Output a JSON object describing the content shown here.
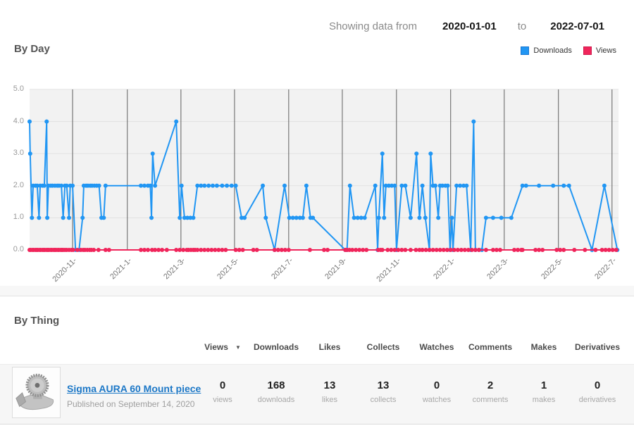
{
  "header": {
    "showing_label": "Showing data from",
    "date_from": "2020-01-01",
    "to_label": "to",
    "date_to": "2022-07-01"
  },
  "legend": [
    {
      "label": "Downloads",
      "color": "#2196f3",
      "border": "#1976d2"
    },
    {
      "label": "Views",
      "color": "#f0255b",
      "border": "#cf1c4d"
    }
  ],
  "sections": {
    "by_day": "By Day",
    "by_thing": "By Thing"
  },
  "chart_data": {
    "type": "line",
    "title": "By Day",
    "ylim": [
      0,
      5
    ],
    "y_ticks": [
      "5.0",
      "4.0",
      "3.0",
      "2.0",
      "1.0",
      "0.0"
    ],
    "x_tick_labels": [
      "2020-11-",
      "2021-1-",
      "2021-3-",
      "2021-5-",
      "2021-7-",
      "2021-9-",
      "2021-11-",
      "2022-1-",
      "2022-3-",
      "2022-5-",
      "2022-7-"
    ],
    "x_tick_pos": [
      0.073,
      0.166,
      0.257,
      0.348,
      0.44,
      0.531,
      0.623,
      0.715,
      0.806,
      0.898,
      0.989
    ],
    "grid": true,
    "plot_bg": "#f2f2f2",
    "grid_color_h": "#e1e1e1",
    "grid_color_v": "#5f5f5f",
    "legend_position": "top-right",
    "series": [
      {
        "name": "Downloads",
        "color": "#2196f3",
        "points": [
          [
            0,
            4
          ],
          [
            0.001,
            3
          ],
          [
            0.004,
            1
          ],
          [
            0.006,
            2
          ],
          [
            0.01,
            2
          ],
          [
            0.013,
            2
          ],
          [
            0.016,
            1
          ],
          [
            0.018,
            2
          ],
          [
            0.022,
            2
          ],
          [
            0.025,
            2
          ],
          [
            0.029,
            4
          ],
          [
            0.03,
            1
          ],
          [
            0.032,
            2
          ],
          [
            0.036,
            2
          ],
          [
            0.039,
            2
          ],
          [
            0.043,
            2
          ],
          [
            0.047,
            2
          ],
          [
            0.05,
            2
          ],
          [
            0.054,
            2
          ],
          [
            0.057,
            1
          ],
          [
            0.06,
            2
          ],
          [
            0.063,
            2
          ],
          [
            0.067,
            1
          ],
          [
            0.069,
            2
          ],
          [
            0.073,
            2
          ],
          [
            0.078,
            0
          ],
          [
            0.084,
            0
          ],
          [
            0.09,
            1
          ],
          [
            0.092,
            2
          ],
          [
            0.096,
            2
          ],
          [
            0.099,
            2
          ],
          [
            0.103,
            2
          ],
          [
            0.106,
            2
          ],
          [
            0.11,
            2
          ],
          [
            0.114,
            2
          ],
          [
            0.118,
            2
          ],
          [
            0.122,
            1
          ],
          [
            0.126,
            1
          ],
          [
            0.129,
            2
          ],
          [
            0.189,
            2
          ],
          [
            0.195,
            2
          ],
          [
            0.201,
            2
          ],
          [
            0.205,
            2
          ],
          [
            0.207,
            1
          ],
          [
            0.209,
            3
          ],
          [
            0.213,
            2
          ],
          [
            0.249,
            4
          ],
          [
            0.255,
            1
          ],
          [
            0.258,
            2
          ],
          [
            0.263,
            1
          ],
          [
            0.268,
            1
          ],
          [
            0.273,
            1
          ],
          [
            0.278,
            1
          ],
          [
            0.285,
            2
          ],
          [
            0.291,
            2
          ],
          [
            0.297,
            2
          ],
          [
            0.304,
            2
          ],
          [
            0.311,
            2
          ],
          [
            0.318,
            2
          ],
          [
            0.327,
            2
          ],
          [
            0.335,
            2
          ],
          [
            0.343,
            2
          ],
          [
            0.35,
            2
          ],
          [
            0.36,
            1
          ],
          [
            0.365,
            1
          ],
          [
            0.396,
            2
          ],
          [
            0.401,
            1
          ],
          [
            0.416,
            0
          ],
          [
            0.433,
            2
          ],
          [
            0.441,
            1
          ],
          [
            0.447,
            1
          ],
          [
            0.453,
            1
          ],
          [
            0.459,
            1
          ],
          [
            0.464,
            1
          ],
          [
            0.47,
            2
          ],
          [
            0.477,
            1
          ],
          [
            0.481,
            1
          ],
          [
            0.536,
            0
          ],
          [
            0.539,
            0
          ],
          [
            0.544,
            2
          ],
          [
            0.551,
            1
          ],
          [
            0.557,
            1
          ],
          [
            0.563,
            1
          ],
          [
            0.569,
            1
          ],
          [
            0.587,
            2
          ],
          [
            0.591,
            0
          ],
          [
            0.593,
            1
          ],
          [
            0.599,
            3
          ],
          [
            0.602,
            1
          ],
          [
            0.605,
            2
          ],
          [
            0.61,
            2
          ],
          [
            0.615,
            2
          ],
          [
            0.62,
            2
          ],
          [
            0.623,
            0
          ],
          [
            0.632,
            2
          ],
          [
            0.638,
            2
          ],
          [
            0.647,
            1
          ],
          [
            0.657,
            3
          ],
          [
            0.662,
            1
          ],
          [
            0.667,
            2
          ],
          [
            0.672,
            1
          ],
          [
            0.679,
            0
          ],
          [
            0.681,
            3
          ],
          [
            0.685,
            2
          ],
          [
            0.689,
            2
          ],
          [
            0.694,
            1
          ],
          [
            0.697,
            2
          ],
          [
            0.701,
            2
          ],
          [
            0.706,
            2
          ],
          [
            0.71,
            2
          ],
          [
            0.714,
            0
          ],
          [
            0.717,
            1
          ],
          [
            0.719,
            0
          ],
          [
            0.725,
            2
          ],
          [
            0.731,
            2
          ],
          [
            0.737,
            2
          ],
          [
            0.742,
            2
          ],
          [
            0.749,
            0
          ],
          [
            0.754,
            4
          ],
          [
            0.757,
            0
          ],
          [
            0.763,
            0
          ],
          [
            0.768,
            0
          ],
          [
            0.775,
            1
          ],
          [
            0.787,
            1
          ],
          [
            0.801,
            1
          ],
          [
            0.818,
            1
          ],
          [
            0.837,
            2
          ],
          [
            0.843,
            2
          ],
          [
            0.865,
            2
          ],
          [
            0.889,
            2
          ],
          [
            0.907,
            2
          ],
          [
            0.916,
            2
          ],
          [
            0.955,
            0
          ],
          [
            0.976,
            2
          ],
          [
            0.998,
            0
          ]
        ]
      },
      {
        "name": "Views",
        "color": "#f0255b",
        "y_const": 0,
        "x": [
          0,
          0.002,
          0.005,
          0.007,
          0.01,
          0.012,
          0.014,
          0.017,
          0.019,
          0.022,
          0.024,
          0.026,
          0.029,
          0.031,
          0.033,
          0.036,
          0.038,
          0.041,
          0.043,
          0.045,
          0.048,
          0.05,
          0.053,
          0.055,
          0.057,
          0.06,
          0.063,
          0.067,
          0.071,
          0.074,
          0.081,
          0.087,
          0.091,
          0.094,
          0.098,
          0.102,
          0.105,
          0.109,
          0.117,
          0.129,
          0.135,
          0.189,
          0.195,
          0.201,
          0.208,
          0.213,
          0.219,
          0.225,
          0.233,
          0.249,
          0.255,
          0.261,
          0.267,
          0.27,
          0.274,
          0.278,
          0.281,
          0.285,
          0.291,
          0.297,
          0.303,
          0.309,
          0.315,
          0.321,
          0.327,
          0.333,
          0.35,
          0.356,
          0.362,
          0.38,
          0.386,
          0.416,
          0.422,
          0.428,
          0.434,
          0.44,
          0.476,
          0.5,
          0.506,
          0.536,
          0.539,
          0.543,
          0.548,
          0.554,
          0.56,
          0.566,
          0.572,
          0.592,
          0.596,
          0.599,
          0.608,
          0.614,
          0.62,
          0.626,
          0.632,
          0.638,
          0.647,
          0.656,
          0.662,
          0.667,
          0.673,
          0.679,
          0.685,
          0.691,
          0.697,
          0.703,
          0.709,
          0.715,
          0.721,
          0.727,
          0.733,
          0.739,
          0.745,
          0.751,
          0.757,
          0.763,
          0.775,
          0.787,
          0.793,
          0.799,
          0.823,
          0.829,
          0.835,
          0.837,
          0.859,
          0.865,
          0.871,
          0.895,
          0.901,
          0.907,
          0.925,
          0.943,
          0.961,
          0.972,
          0.978,
          0.984,
          0.99,
          0.996
        ]
      }
    ]
  },
  "table": {
    "columns": [
      "Views",
      "Downloads",
      "Likes",
      "Collects",
      "Watches",
      "Comments",
      "Makes",
      "Derivatives"
    ],
    "sorted_column": "Views",
    "sort_indicator": "▼",
    "rows": [
      {
        "title": "Sigma AURA 60 Mount piece",
        "published": "Published on September 14, 2020",
        "values": [
          {
            "value": "0",
            "label": "views"
          },
          {
            "value": "168",
            "label": "downloads"
          },
          {
            "value": "13",
            "label": "likes"
          },
          {
            "value": "13",
            "label": "collects"
          },
          {
            "value": "0",
            "label": "watches"
          },
          {
            "value": "2",
            "label": "comments"
          },
          {
            "value": "1",
            "label": "makes"
          },
          {
            "value": "0",
            "label": "derivatives"
          }
        ]
      }
    ]
  }
}
